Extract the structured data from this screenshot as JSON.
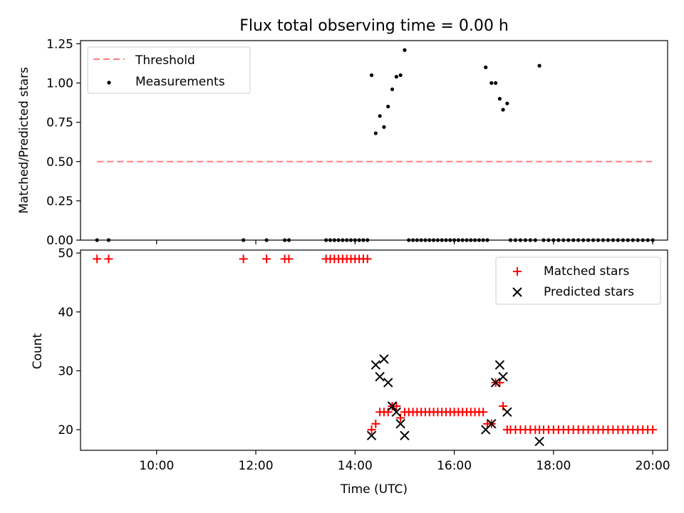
{
  "chart_data": [
    {
      "type": "scatter",
      "title": "Flux total observing time = 0.00 h",
      "xlabel": "",
      "ylabel": "Matched/Predicted stars",
      "xlim": [
        "08:28",
        "20:18"
      ],
      "ylim": [
        0,
        1.27
      ],
      "yticks": [
        0.0,
        0.25,
        0.5,
        0.75,
        1.0,
        1.25
      ],
      "ytick_labels": [
        "0.00",
        "0.25",
        "0.50",
        "0.75",
        "1.00",
        "1.25"
      ],
      "xticks": [
        "10:00",
        "12:00",
        "14:00",
        "16:00",
        "18:00",
        "20:00"
      ],
      "legend": {
        "placement": "top-left",
        "entries": [
          "Threshold",
          "Measurements"
        ]
      },
      "series": [
        {
          "name": "Threshold",
          "kind": "dashed-line",
          "color": "#ff7f7f",
          "points": [
            [
              "08:48",
              0.5
            ],
            [
              "20:00",
              0.5
            ]
          ]
        },
        {
          "name": "Measurements",
          "kind": "points",
          "color": "#000000",
          "points": [
            [
              "08:48",
              0
            ],
            [
              "09:02",
              0
            ],
            [
              "11:45",
              0
            ],
            [
              "12:13",
              0
            ],
            [
              "12:35",
              0
            ],
            [
              "12:40",
              0
            ],
            [
              "13:25",
              0
            ],
            [
              "13:30",
              0
            ],
            [
              "13:35",
              0
            ],
            [
              "13:40",
              0
            ],
            [
              "13:45",
              0
            ],
            [
              "13:50",
              0
            ],
            [
              "13:55",
              0
            ],
            [
              "14:00",
              0
            ],
            [
              "14:05",
              0
            ],
            [
              "14:10",
              0
            ],
            [
              "14:15",
              0
            ],
            [
              "14:20",
              1.05
            ],
            [
              "14:25",
              0.68
            ],
            [
              "14:30",
              0.79
            ],
            [
              "14:35",
              0.72
            ],
            [
              "14:40",
              0.85
            ],
            [
              "14:45",
              0.96
            ],
            [
              "14:50",
              1.04
            ],
            [
              "14:55",
              1.05
            ],
            [
              "15:00",
              1.21
            ],
            [
              "15:05",
              0
            ],
            [
              "15:10",
              0
            ],
            [
              "15:15",
              0
            ],
            [
              "15:20",
              0
            ],
            [
              "15:25",
              0
            ],
            [
              "15:30",
              0
            ],
            [
              "15:35",
              0
            ],
            [
              "15:40",
              0
            ],
            [
              "15:45",
              0
            ],
            [
              "15:50",
              0
            ],
            [
              "15:55",
              0
            ],
            [
              "16:00",
              0
            ],
            [
              "16:05",
              0
            ],
            [
              "16:10",
              0
            ],
            [
              "16:15",
              0
            ],
            [
              "16:20",
              0
            ],
            [
              "16:25",
              0
            ],
            [
              "16:30",
              0
            ],
            [
              "16:35",
              0
            ],
            [
              "16:40",
              0
            ],
            [
              "16:38",
              1.1
            ],
            [
              "16:45",
              1.0
            ],
            [
              "16:50",
              1.0
            ],
            [
              "16:55",
              0.9
            ],
            [
              "16:59",
              0.83
            ],
            [
              "17:04",
              0.87
            ],
            [
              "17:08",
              0
            ],
            [
              "17:14",
              0
            ],
            [
              "17:20",
              0
            ],
            [
              "17:26",
              0
            ],
            [
              "17:32",
              0
            ],
            [
              "17:38",
              0
            ],
            [
              "17:43",
              1.11
            ],
            [
              "17:48",
              0
            ],
            [
              "17:54",
              0
            ],
            [
              "18:00",
              0
            ],
            [
              "18:06",
              0
            ],
            [
              "18:12",
              0
            ],
            [
              "18:18",
              0
            ],
            [
              "18:24",
              0
            ],
            [
              "18:30",
              0
            ],
            [
              "18:36",
              0
            ],
            [
              "18:42",
              0
            ],
            [
              "18:48",
              0
            ],
            [
              "18:54",
              0
            ],
            [
              "19:00",
              0
            ],
            [
              "19:06",
              0
            ],
            [
              "19:12",
              0
            ],
            [
              "19:18",
              0
            ],
            [
              "19:24",
              0
            ],
            [
              "19:30",
              0
            ],
            [
              "19:36",
              0
            ],
            [
              "19:42",
              0
            ],
            [
              "19:48",
              0
            ],
            [
              "19:54",
              0
            ],
            [
              "20:00",
              0
            ]
          ]
        }
      ]
    },
    {
      "type": "scatter",
      "title": "",
      "xlabel": "Time (UTC)",
      "ylabel": "Count",
      "xlim": [
        "08:28",
        "20:18"
      ],
      "ylim": [
        16.5,
        50.5
      ],
      "yticks": [
        20,
        30,
        40,
        50
      ],
      "ytick_labels": [
        "20",
        "30",
        "40",
        "50"
      ],
      "xticks": [
        "10:00",
        "12:00",
        "14:00",
        "16:00",
        "18:00",
        "20:00"
      ],
      "xtick_labels": [
        "10:00",
        "12:00",
        "14:00",
        "16:00",
        "18:00",
        "20:00"
      ],
      "legend": {
        "placement": "top-right",
        "entries": [
          "Matched stars",
          "Predicted stars"
        ]
      },
      "series": [
        {
          "name": "Matched stars",
          "marker": "plus",
          "color": "#ff0000",
          "points": [
            [
              "08:48",
              49
            ],
            [
              "09:02",
              49
            ],
            [
              "11:45",
              49
            ],
            [
              "12:13",
              49
            ],
            [
              "12:35",
              49
            ],
            [
              "12:40",
              49
            ],
            [
              "13:25",
              49
            ],
            [
              "13:30",
              49
            ],
            [
              "13:35",
              49
            ],
            [
              "13:40",
              49
            ],
            [
              "13:45",
              49
            ],
            [
              "13:50",
              49
            ],
            [
              "13:55",
              49
            ],
            [
              "14:00",
              49
            ],
            [
              "14:05",
              49
            ],
            [
              "14:10",
              49
            ],
            [
              "14:15",
              49
            ],
            [
              "14:20",
              20
            ],
            [
              "14:25",
              21
            ],
            [
              "14:30",
              23
            ],
            [
              "14:35",
              23
            ],
            [
              "14:40",
              23
            ],
            [
              "14:45",
              24
            ],
            [
              "14:50",
              24
            ],
            [
              "14:55",
              22
            ],
            [
              "15:00",
              23
            ],
            [
              "15:05",
              23
            ],
            [
              "15:10",
              23
            ],
            [
              "15:15",
              23
            ],
            [
              "15:20",
              23
            ],
            [
              "15:25",
              23
            ],
            [
              "15:30",
              23
            ],
            [
              "15:35",
              23
            ],
            [
              "15:40",
              23
            ],
            [
              "15:45",
              23
            ],
            [
              "15:50",
              23
            ],
            [
              "15:55",
              23
            ],
            [
              "16:00",
              23
            ],
            [
              "16:05",
              23
            ],
            [
              "16:10",
              23
            ],
            [
              "16:15",
              23
            ],
            [
              "16:20",
              23
            ],
            [
              "16:25",
              23
            ],
            [
              "16:30",
              23
            ],
            [
              "16:35",
              23
            ],
            [
              "16:40",
              21
            ],
            [
              "16:45",
              21
            ],
            [
              "16:50",
              28
            ],
            [
              "16:55",
              28
            ],
            [
              "16:59",
              24
            ],
            [
              "17:04",
              20
            ],
            [
              "17:08",
              20
            ],
            [
              "17:14",
              20
            ],
            [
              "17:20",
              20
            ],
            [
              "17:26",
              20
            ],
            [
              "17:32",
              20
            ],
            [
              "17:38",
              20
            ],
            [
              "17:43",
              20
            ],
            [
              "17:48",
              20
            ],
            [
              "17:54",
              20
            ],
            [
              "18:00",
              20
            ],
            [
              "18:06",
              20
            ],
            [
              "18:12",
              20
            ],
            [
              "18:18",
              20
            ],
            [
              "18:24",
              20
            ],
            [
              "18:30",
              20
            ],
            [
              "18:36",
              20
            ],
            [
              "18:42",
              20
            ],
            [
              "18:48",
              20
            ],
            [
              "18:54",
              20
            ],
            [
              "19:00",
              20
            ],
            [
              "19:06",
              20
            ],
            [
              "19:12",
              20
            ],
            [
              "19:18",
              20
            ],
            [
              "19:24",
              20
            ],
            [
              "19:30",
              20
            ],
            [
              "19:36",
              20
            ],
            [
              "19:42",
              20
            ],
            [
              "19:48",
              20
            ],
            [
              "19:54",
              20
            ],
            [
              "20:00",
              20
            ]
          ]
        },
        {
          "name": "Predicted stars",
          "marker": "cross",
          "color": "#000000",
          "points": [
            [
              "14:20",
              19
            ],
            [
              "14:25",
              31
            ],
            [
              "14:30",
              29
            ],
            [
              "14:35",
              32
            ],
            [
              "14:40",
              28
            ],
            [
              "14:45",
              24
            ],
            [
              "14:50",
              23
            ],
            [
              "14:55",
              21
            ],
            [
              "15:00",
              19
            ],
            [
              "16:38",
              20
            ],
            [
              "16:45",
              21
            ],
            [
              "16:50",
              28
            ],
            [
              "16:55",
              31
            ],
            [
              "16:59",
              29
            ],
            [
              "17:04",
              23
            ],
            [
              "17:43",
              18
            ]
          ]
        }
      ]
    }
  ]
}
